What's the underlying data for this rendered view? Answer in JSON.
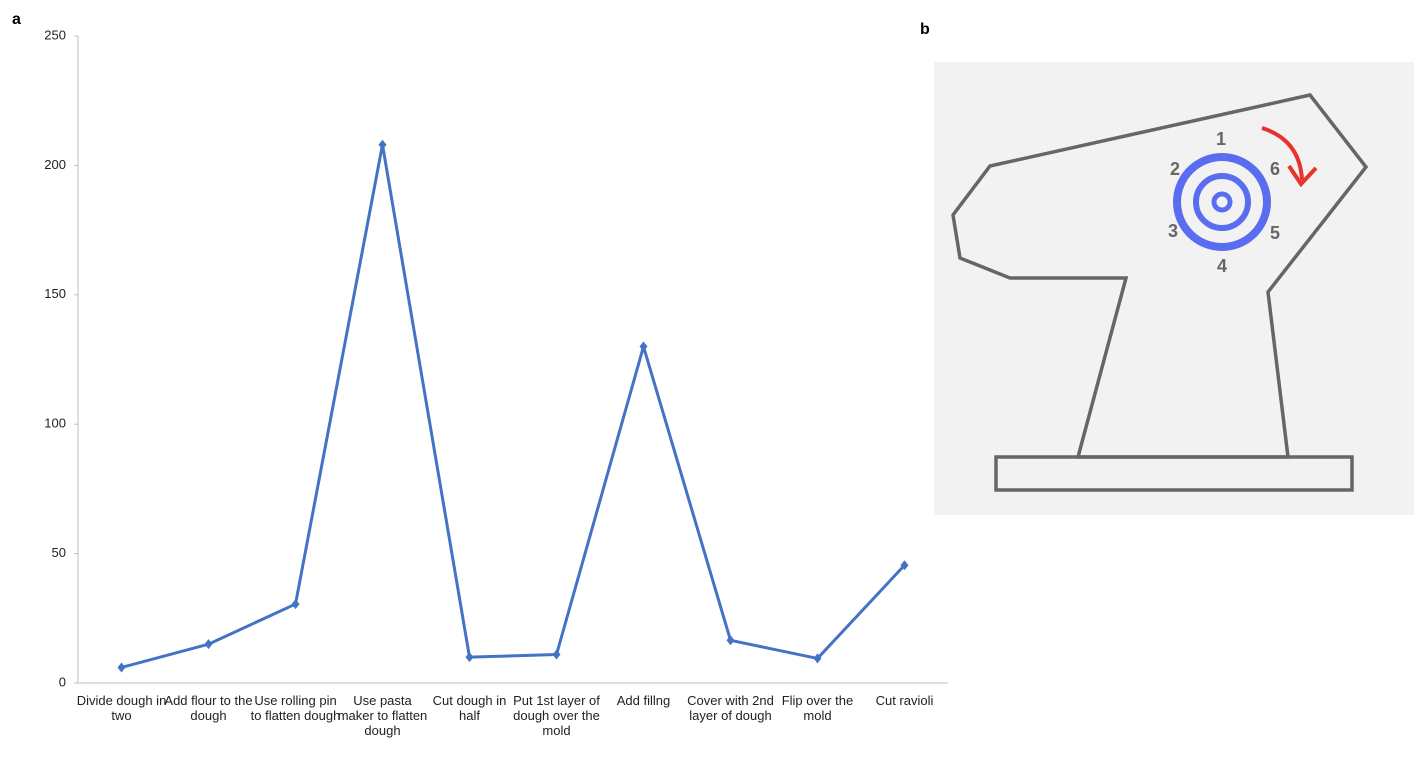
{
  "panel_labels": [
    "a",
    "b"
  ],
  "chart_data": {
    "type": "line",
    "categories": [
      "Divide dough in two",
      "Add flour to the dough",
      "Use rolling pin to flatten dough",
      "Use pasta maker to flatten dough",
      "Cut dough in half",
      "Put 1st layer of dough over the mold",
      "Add fillng",
      "Cover with 2nd layer of dough",
      "Flip over the mold",
      "Cut ravioli"
    ],
    "values": [
      6,
      15,
      30.5,
      208,
      10,
      11,
      130,
      16.5,
      9.5,
      45.5
    ],
    "color": "#4472c4",
    "ylim": [
      0,
      250
    ],
    "yticks": [
      0,
      50,
      100,
      150,
      200,
      250
    ],
    "grid": false
  },
  "diagram": {
    "dial_labels": [
      "1",
      "2",
      "3",
      "4",
      "5",
      "6"
    ]
  }
}
